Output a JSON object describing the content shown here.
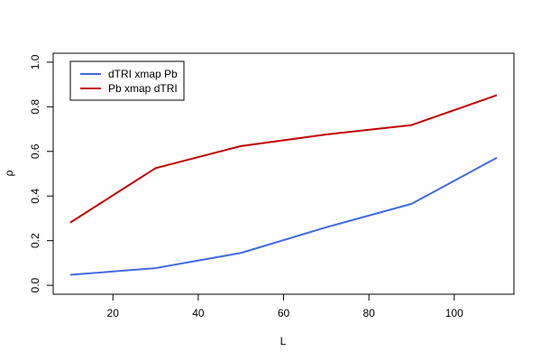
{
  "chart_data": {
    "type": "line",
    "title": "",
    "xlabel": "L",
    "ylabel": "ρ",
    "x": [
      10,
      30,
      50,
      70,
      90,
      110
    ],
    "xlim": [
      6,
      114
    ],
    "ylim": [
      -0.04,
      1.04
    ],
    "xticks": [
      20,
      40,
      60,
      80,
      100
    ],
    "yticks": [
      0.0,
      0.2,
      0.4,
      0.6,
      0.8,
      1.0
    ],
    "xtick_labels": [
      "20",
      "40",
      "60",
      "80",
      "100"
    ],
    "ytick_labels": [
      "0.0",
      "0.2",
      "0.4",
      "0.6",
      "0.8",
      "1.0"
    ],
    "grid": false,
    "legend_position": "top-left",
    "series": [
      {
        "name": "dTRI xmap Pb",
        "color": "#4169e1",
        "values": [
          0.047,
          0.077,
          0.145,
          0.26,
          0.365,
          0.572
        ]
      },
      {
        "name": "Pb xmap dTRI",
        "color": "#c00000",
        "values": [
          0.281,
          0.525,
          0.624,
          0.676,
          0.718,
          0.852
        ]
      }
    ]
  }
}
